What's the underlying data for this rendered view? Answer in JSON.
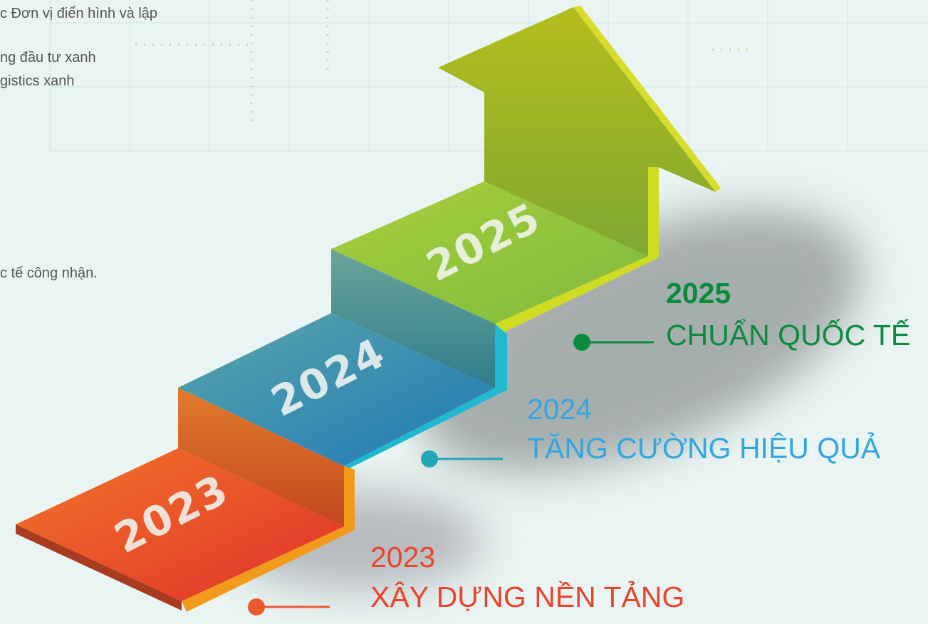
{
  "left_text": [
    "c Đơn vị điển hình và lập",
    "ng đầu tư xanh",
    "gistics xanh",
    "c tế công nhận."
  ],
  "steps": [
    {
      "label": "2023"
    },
    {
      "label": "2024"
    },
    {
      "label": "2025"
    }
  ],
  "milestones": [
    {
      "year": "2025",
      "title": "CHUẨN QUỐC TẾ"
    },
    {
      "year": "2024",
      "title": "TĂNG CƯỜNG HIỆU QUẢ"
    },
    {
      "year": "2023",
      "title": "XÂY DỰNG NỀN TẢNG"
    }
  ]
}
